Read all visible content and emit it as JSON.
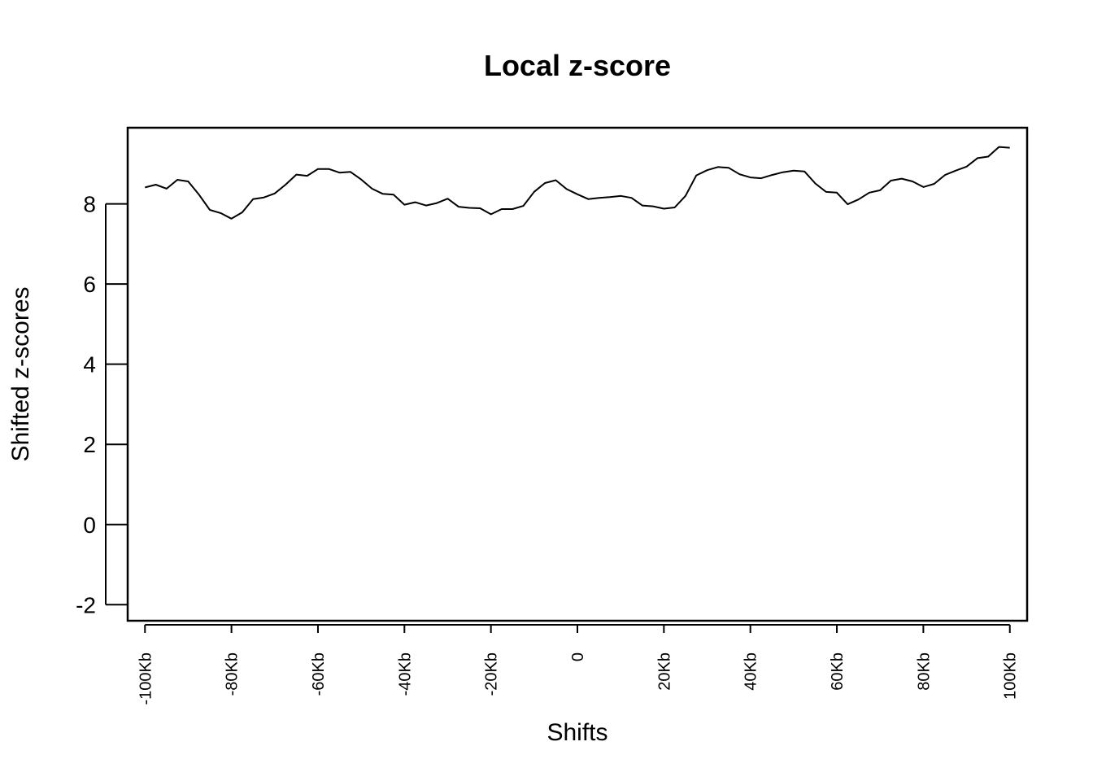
{
  "chart_data": {
    "type": "line",
    "title": "Local z-score",
    "xlabel": "Shifts",
    "ylabel": "Shifted z-scores",
    "xlim": [
      -104,
      104
    ],
    "ylim": [
      -2.4,
      9.9
    ],
    "yticks": [
      -2,
      0,
      2,
      4,
      6,
      8
    ],
    "ytick_labels": [
      "-2",
      "0",
      "2",
      "4",
      "6",
      "8"
    ],
    "xticks": [
      -100,
      -80,
      -60,
      -40,
      -20,
      0,
      20,
      40,
      60,
      80,
      100
    ],
    "xtick_labels": [
      "-100Kb",
      "-80Kb",
      "-60Kb",
      "-40Kb",
      "-20Kb",
      "0",
      "20Kb",
      "40Kb",
      "60Kb",
      "80Kb",
      "100Kb"
    ],
    "grid": false,
    "series": [
      {
        "name": "z-score",
        "color": "#000000",
        "x": [
          -100,
          -97.5,
          -95,
          -92.5,
          -90,
          -87.5,
          -85,
          -82.5,
          -80,
          -77.5,
          -75,
          -72.5,
          -70,
          -67.5,
          -65,
          -62.5,
          -60,
          -57.5,
          -55,
          -52.5,
          -50,
          -47.5,
          -45,
          -42.5,
          -40,
          -37.5,
          -35,
          -32.5,
          -30,
          -27.5,
          -25,
          -22.5,
          -20,
          -17.5,
          -15,
          -12.5,
          -10,
          -7.5,
          -5,
          -2.5,
          0,
          2.5,
          5,
          7.5,
          10,
          12.5,
          15,
          17.5,
          20,
          22.5,
          25,
          27.5,
          30,
          32.5,
          35,
          37.5,
          40,
          42.5,
          45,
          47.5,
          50,
          52.5,
          55,
          57.5,
          60,
          62.5,
          65,
          67.5,
          70,
          72.5,
          75,
          77.5,
          80,
          82.5,
          85,
          87.5,
          90,
          92.5,
          95,
          97.5,
          100
        ],
        "values": [
          8.41,
          8.48,
          8.38,
          8.6,
          8.56,
          8.23,
          7.85,
          7.77,
          7.63,
          7.79,
          8.12,
          8.16,
          8.26,
          8.48,
          8.73,
          8.7,
          8.87,
          8.87,
          8.78,
          8.8,
          8.61,
          8.38,
          8.25,
          8.23,
          7.98,
          8.04,
          7.96,
          8.02,
          8.13,
          7.93,
          7.9,
          7.89,
          7.74,
          7.87,
          7.87,
          7.95,
          8.3,
          8.52,
          8.59,
          8.37,
          8.24,
          8.12,
          8.15,
          8.17,
          8.2,
          8.15,
          7.96,
          7.94,
          7.88,
          7.91,
          8.2,
          8.71,
          8.84,
          8.92,
          8.9,
          8.74,
          8.66,
          8.64,
          8.72,
          8.79,
          8.83,
          8.81,
          8.51,
          8.3,
          8.28,
          7.99,
          8.11,
          8.28,
          8.34,
          8.58,
          8.63,
          8.56,
          8.42,
          8.5,
          8.72,
          8.83,
          8.93,
          9.14,
          9.18,
          9.42,
          9.4
        ]
      }
    ]
  }
}
